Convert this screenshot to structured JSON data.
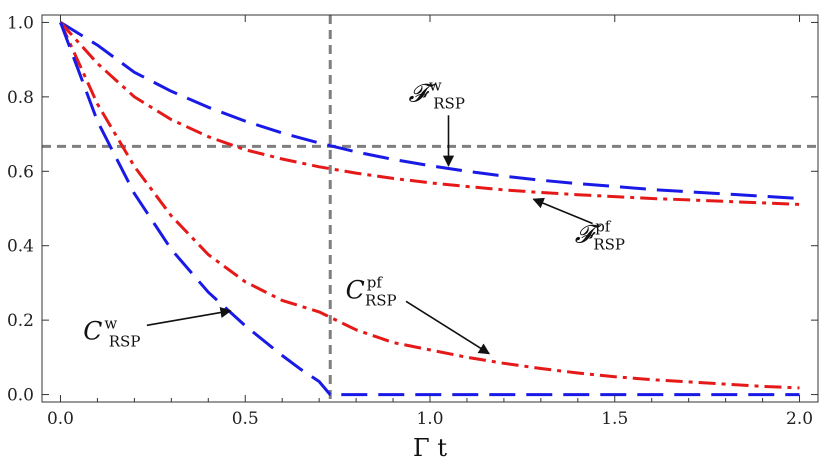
{
  "chart_data": {
    "type": "line",
    "xlabel": "Γ t",
    "ylabel": "",
    "xlim": [
      -0.05,
      2.05
    ],
    "ylim": [
      -0.02,
      1.02
    ],
    "xticks": [
      0.0,
      0.5,
      1.0,
      1.5,
      2.0
    ],
    "xtick_labels": [
      "0.0",
      "0.5",
      "1.0",
      "1.5",
      "2.0"
    ],
    "yticks": [
      0.0,
      0.2,
      0.4,
      0.6,
      0.8,
      1.0
    ],
    "ytick_labels": [
      "0.0",
      "0.2",
      "0.4",
      "0.6",
      "0.8",
      "1.0"
    ],
    "grid": false,
    "reference_lines": [
      {
        "orientation": "horizontal",
        "value": 0.667,
        "color": "#7f7f7f",
        "style": "dashed"
      },
      {
        "orientation": "vertical",
        "value": 0.73,
        "color": "#7f7f7f",
        "style": "dashed"
      }
    ],
    "series": [
      {
        "key": "f_w",
        "color": "#1a1ae6",
        "style": "dashed",
        "x": [
          0.0,
          0.1,
          0.2,
          0.3,
          0.4,
          0.5,
          0.6,
          0.7,
          0.8,
          0.9,
          1.0,
          1.1,
          1.2,
          1.3,
          1.4,
          1.5,
          1.6,
          1.7,
          1.8,
          1.9,
          2.0
        ],
        "y": [
          1.0,
          0.939,
          0.866,
          0.815,
          0.772,
          0.735,
          0.703,
          0.676,
          0.652,
          0.632,
          0.615,
          0.6,
          0.587,
          0.576,
          0.567,
          0.559,
          0.551,
          0.545,
          0.539,
          0.533,
          0.527
        ]
      },
      {
        "key": "f_pf",
        "color": "#e61919",
        "style": "dashdot",
        "x": [
          0.0,
          0.1,
          0.2,
          0.3,
          0.4,
          0.5,
          0.6,
          0.7,
          0.8,
          0.9,
          1.0,
          1.1,
          1.2,
          1.3,
          1.4,
          1.5,
          1.6,
          1.7,
          1.8,
          1.9,
          2.0
        ],
        "y": [
          1.0,
          0.89,
          0.8,
          0.739,
          0.693,
          0.658,
          0.633,
          0.612,
          0.595,
          0.581,
          0.569,
          0.559,
          0.55,
          0.543,
          0.537,
          0.532,
          0.527,
          0.523,
          0.519,
          0.515,
          0.511
        ]
      },
      {
        "key": "c_pf",
        "color": "#e61919",
        "style": "dashdot",
        "x": [
          0.0,
          0.1,
          0.2,
          0.3,
          0.4,
          0.5,
          0.6,
          0.7,
          0.8,
          0.9,
          1.0,
          1.1,
          1.2,
          1.3,
          1.4,
          1.5,
          1.6,
          1.7,
          1.8,
          1.9,
          2.0
        ],
        "y": [
          1.0,
          0.781,
          0.613,
          0.48,
          0.376,
          0.303,
          0.253,
          0.222,
          0.174,
          0.14,
          0.12,
          0.1,
          0.084,
          0.07,
          0.058,
          0.048,
          0.04,
          0.034,
          0.028,
          0.022,
          0.018
        ]
      },
      {
        "key": "c_w",
        "color": "#1a1ae6",
        "style": "dashed",
        "x": [
          0.0,
          0.1,
          0.2,
          0.3,
          0.4,
          0.5,
          0.6,
          0.65,
          0.7,
          0.73,
          0.8,
          1.0,
          1.2,
          1.4,
          1.6,
          1.8,
          2.0
        ],
        "y": [
          1.0,
          0.735,
          0.54,
          0.39,
          0.275,
          0.185,
          0.105,
          0.068,
          0.035,
          0.0,
          0.0,
          0.0,
          0.0,
          0.0,
          0.0,
          0.0,
          0.0
        ]
      }
    ],
    "annotations": [
      {
        "key": "f_w",
        "main": "𝓕",
        "sup": "w",
        "sub": "RSP",
        "label_at": [
          1.05,
          0.815
        ],
        "arrow_to": [
          1.05,
          0.615
        ]
      },
      {
        "key": "f_pf",
        "main": "𝓕",
        "sup": "pf",
        "sub": "RSP",
        "label_at": [
          1.5,
          0.435
        ],
        "arrow_to": [
          1.28,
          0.525
        ]
      },
      {
        "key": "c_pf",
        "main": "C",
        "sup": "pf",
        "sub": "RSP",
        "label_at": [
          0.88,
          0.285
        ],
        "arrow_to": [
          1.16,
          0.11
        ]
      },
      {
        "key": "c_w",
        "main": "C",
        "sup": "w",
        "sub": "RSP",
        "label_at": [
          0.17,
          0.175
        ],
        "arrow_to": [
          0.46,
          0.225
        ]
      }
    ]
  }
}
